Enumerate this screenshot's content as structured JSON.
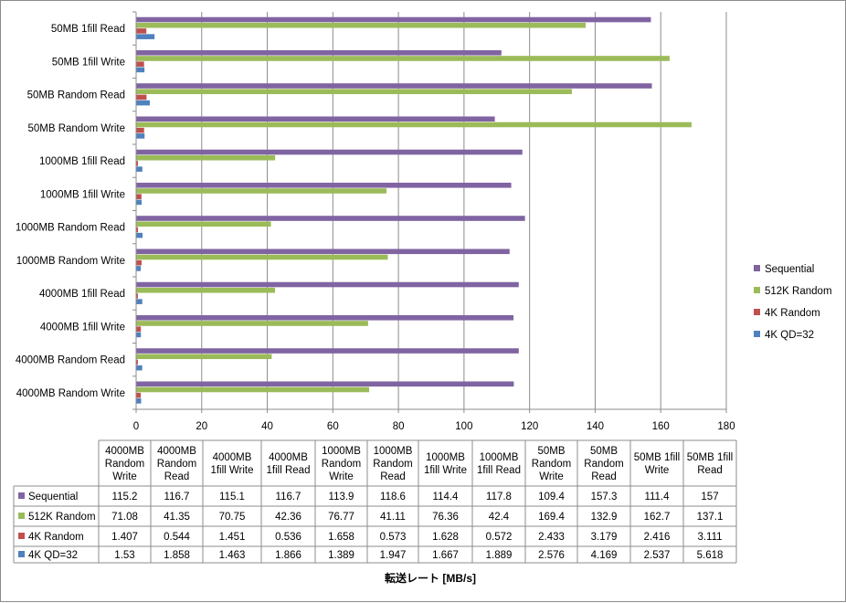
{
  "chart_data": {
    "type": "bar",
    "orientation": "horizontal",
    "title": "",
    "xlabel": "転送レート [MB/s]",
    "ylabel": "",
    "xlim": [
      0,
      180
    ],
    "xticks": [
      0,
      20,
      40,
      60,
      80,
      100,
      120,
      140,
      160,
      180
    ],
    "grid": true,
    "legend_position": "right",
    "categories": [
      "4000MB Random Write",
      "4000MB Random Read",
      "4000MB 1fill Write",
      "4000MB 1fill Read",
      "1000MB Random Write",
      "1000MB Random Read",
      "1000MB 1fill Write",
      "1000MB 1fill Read",
      "50MB Random Write",
      "50MB Random Read",
      "50MB 1fill Write",
      "50MB 1fill Read"
    ],
    "table_headers": [
      [
        "4000MB",
        "Random",
        "Write"
      ],
      [
        "4000MB",
        "Random",
        "Read"
      ],
      [
        "4000MB",
        "1fill Write"
      ],
      [
        "4000MB",
        "1fill Read"
      ],
      [
        "1000MB",
        "Random",
        "Write"
      ],
      [
        "1000MB",
        "Random",
        "Read"
      ],
      [
        "1000MB",
        "1fill Write"
      ],
      [
        "1000MB",
        "1fill Read"
      ],
      [
        "50MB",
        "Random",
        "Write"
      ],
      [
        "50MB",
        "Random",
        "Read"
      ],
      [
        "50MB 1fill",
        "Write"
      ],
      [
        "50MB 1fill",
        "Read"
      ]
    ],
    "series": [
      {
        "name": "Sequential",
        "color": "#8064A2",
        "values": [
          115.2,
          116.7,
          115.1,
          116.7,
          113.9,
          118.6,
          114.4,
          117.8,
          109.4,
          157.3,
          111.4,
          157
        ],
        "labels": [
          "115.2",
          "116.7",
          "115.1",
          "116.7",
          "113.9",
          "118.6",
          "114.4",
          "117.8",
          "109.4",
          "157.3",
          "111.4",
          "157"
        ]
      },
      {
        "name": "512K Random",
        "color": "#9BBB59",
        "values": [
          71.08,
          41.35,
          70.75,
          42.36,
          76.77,
          41.11,
          76.36,
          42.4,
          169.4,
          132.9,
          162.7,
          137.1
        ],
        "labels": [
          "71.08",
          "41.35",
          "70.75",
          "42.36",
          "76.77",
          "41.11",
          "76.36",
          "42.4",
          "169.4",
          "132.9",
          "162.7",
          "137.1"
        ]
      },
      {
        "name": "4K Random",
        "color": "#C0504D",
        "values": [
          1.407,
          0.544,
          1.451,
          0.536,
          1.658,
          0.573,
          1.628,
          0.572,
          2.433,
          3.179,
          2.416,
          3.111
        ],
        "labels": [
          "1.407",
          "0.544",
          "1.451",
          "0.536",
          "1.658",
          "0.573",
          "1.628",
          "0.572",
          "2.433",
          "3.179",
          "2.416",
          "3.111"
        ]
      },
      {
        "name": "4K QD=32",
        "color": "#4F81BD",
        "values": [
          1.53,
          1.858,
          1.463,
          1.866,
          1.389,
          1.947,
          1.667,
          1.889,
          2.576,
          4.169,
          2.537,
          5.618
        ],
        "labels": [
          "1.53",
          "1.858",
          "1.463",
          "1.866",
          "1.389",
          "1.947",
          "1.667",
          "1.889",
          "2.576",
          "4.169",
          "2.537",
          "5.618"
        ]
      }
    ]
  }
}
